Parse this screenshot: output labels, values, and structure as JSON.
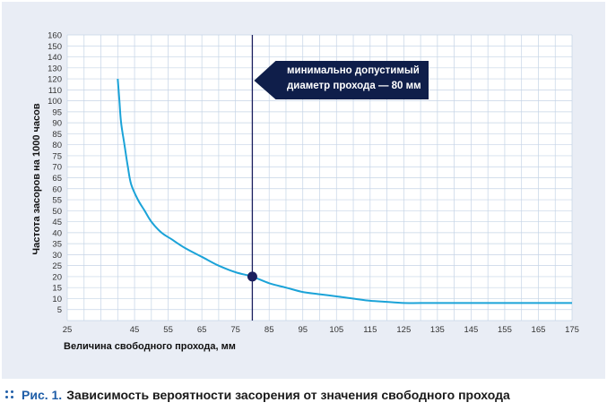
{
  "chart_data": {
    "type": "line",
    "xlabel": "Величина свободного прохода, мм",
    "ylabel": "Частота засоров на 1000 часов",
    "xlim": [
      25,
      175
    ],
    "ylim": [
      0,
      160
    ],
    "x_ticks": [
      25,
      30,
      35,
      40,
      45,
      50,
      55,
      60,
      65,
      70,
      75,
      80,
      85,
      90,
      95,
      100,
      105,
      110,
      115,
      120,
      125,
      130,
      135,
      140,
      145,
      150,
      155,
      160,
      165,
      170,
      175
    ],
    "x_tick_labels": [
      "25",
      "",
      "",
      "",
      "45",
      "",
      "55",
      "",
      "65",
      "",
      "75",
      "",
      "85",
      "",
      "95",
      "",
      "105",
      "",
      "115",
      "",
      "125",
      "",
      "135",
      "",
      "145",
      "",
      "155",
      "",
      "165",
      "",
      "175"
    ],
    "y_ticks": [
      5,
      10,
      15,
      20,
      25,
      30,
      35,
      40,
      45,
      50,
      55,
      60,
      65,
      70,
      75,
      80,
      85,
      90,
      95,
      100,
      110,
      120,
      130,
      140,
      150,
      160
    ],
    "grid": true,
    "series": [
      {
        "color": "#1ba3d8",
        "x": [
          40,
          40.5,
          41,
          42,
          43,
          44,
          46,
          48,
          50,
          53,
          56,
          60,
          65,
          70,
          75,
          80,
          85,
          90,
          95,
          100,
          105,
          110,
          115,
          120,
          125,
          130,
          140,
          150,
          160,
          175
        ],
        "y": [
          120,
          100,
          90,
          80,
          70,
          62,
          55,
          50,
          45,
          40,
          37,
          33,
          29,
          25,
          22,
          20,
          17,
          15,
          13,
          12,
          11,
          10,
          9,
          8.5,
          8,
          8,
          8,
          8,
          8,
          8
        ]
      }
    ],
    "reference_line": {
      "x": 80,
      "color": "#1b1f5e"
    },
    "marker": {
      "x": 80,
      "y": 20,
      "color": "#1b1f5e"
    },
    "annotation": {
      "lines": [
        "минимально допустимый",
        "диаметр прохода — 80 мм"
      ],
      "color": "#0f1e4a"
    }
  },
  "caption": {
    "prefix": "Рис. 1.",
    "text": "Зависимость вероятности засорения от значения свободного прохода"
  }
}
